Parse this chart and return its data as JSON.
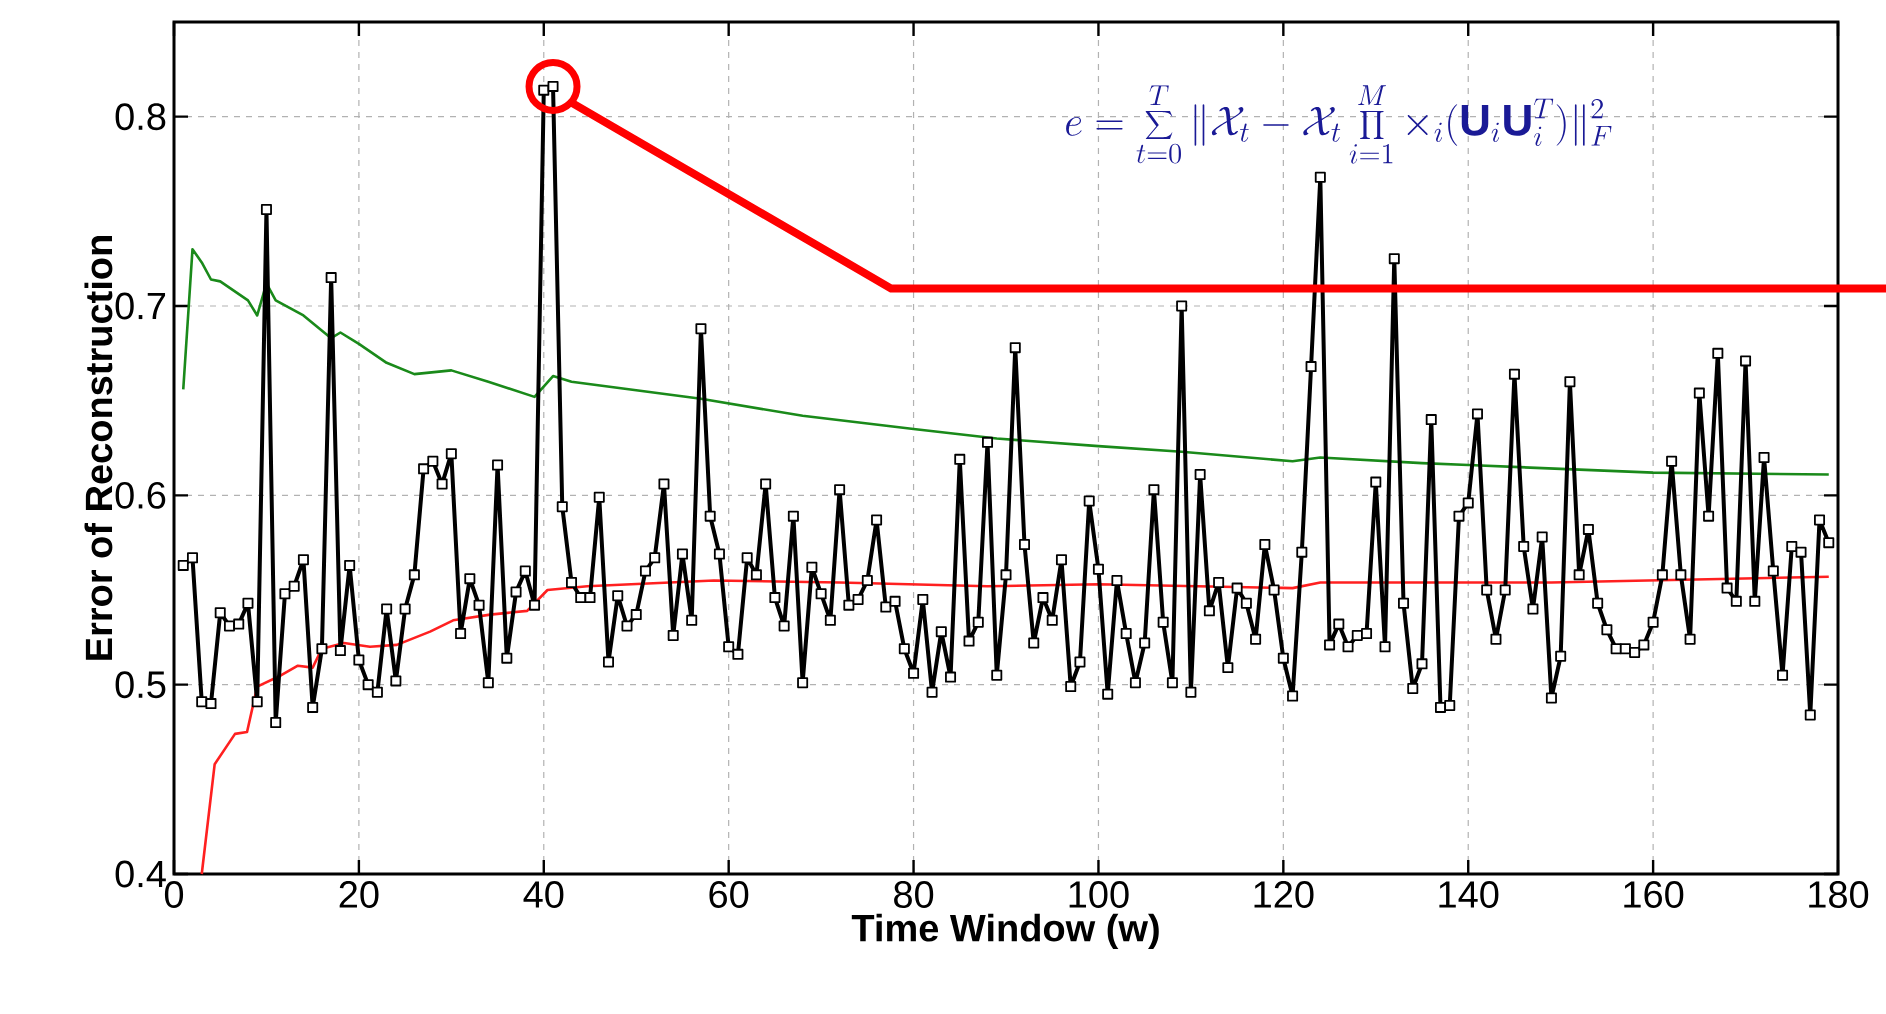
{
  "chart_data": {
    "type": "line",
    "xlabel": "Time Window (w)",
    "ylabel": "Error of Reconstruction",
    "xlim": [
      0,
      180
    ],
    "ylim": [
      0.4,
      0.85
    ],
    "xticks": [
      0,
      20,
      40,
      60,
      80,
      100,
      120,
      140,
      160,
      180
    ],
    "yticks": [
      0.4,
      0.5,
      0.6,
      0.7,
      0.8
    ],
    "grid": true,
    "series": [
      {
        "color": "#1a8a1a",
        "marker": "none",
        "x": [
          1,
          2,
          3,
          4,
          5,
          8,
          9,
          10,
          11,
          14,
          17,
          18,
          20,
          23,
          26,
          30,
          34,
          39,
          41,
          43,
          57,
          68,
          80,
          89,
          100,
          109,
          121,
          124,
          135,
          140,
          160,
          179
        ],
        "values": [
          0.656,
          0.73,
          0.723,
          0.714,
          0.713,
          0.703,
          0.695,
          0.712,
          0.703,
          0.695,
          0.683,
          0.686,
          0.68,
          0.67,
          0.664,
          0.666,
          0.66,
          0.652,
          0.663,
          0.66,
          0.651,
          0.642,
          0.635,
          0.63,
          0.626,
          0.623,
          0.618,
          0.62,
          0.617,
          0.616,
          0.612,
          0.611
        ]
      },
      {
        "color": "#ff2020",
        "marker": "none",
        "x": [
          3,
          4.4,
          6.6,
          7.9,
          9,
          11.6,
          13.4,
          15,
          16,
          18.4,
          21.2,
          24.1,
          27.7,
          30.2,
          34.2,
          38.2,
          40.4,
          44.7,
          58.4,
          72,
          88,
          100,
          121,
          124,
          136.6,
          149,
          179
        ],
        "values": [
          0.4,
          0.458,
          0.474,
          0.475,
          0.499,
          0.505,
          0.51,
          0.509,
          0.519,
          0.522,
          0.52,
          0.521,
          0.528,
          0.534,
          0.537,
          0.539,
          0.55,
          0.552,
          0.555,
          0.554,
          0.552,
          0.553,
          0.551,
          0.554,
          0.554,
          0.554,
          0.557
        ]
      },
      {
        "color": "#000000",
        "marker": "square",
        "x": [
          1,
          2,
          3,
          4,
          5,
          6,
          7,
          8,
          9,
          10,
          11,
          12,
          13,
          14,
          15,
          16,
          17,
          18,
          19,
          20,
          21,
          22,
          23,
          24,
          25,
          26,
          27,
          28,
          29,
          30,
          31,
          32,
          33,
          34,
          35,
          36,
          37,
          38,
          39,
          40,
          41,
          42,
          43,
          44,
          45,
          46,
          47,
          48,
          49,
          50,
          51,
          52,
          53,
          54,
          55,
          56,
          57,
          58,
          59,
          60,
          61,
          62,
          63,
          64,
          65,
          66,
          67,
          68,
          69,
          70,
          71,
          72,
          73,
          74,
          75,
          76,
          77,
          78,
          79,
          80,
          81,
          82,
          83,
          84,
          85,
          86,
          87,
          88,
          89,
          90,
          91,
          92,
          93,
          94,
          95,
          96,
          97,
          98,
          99,
          100,
          101,
          102,
          103,
          104,
          105,
          106,
          107,
          108,
          109,
          110,
          111,
          112,
          113,
          114,
          115,
          116,
          117,
          118,
          119,
          120,
          121,
          122,
          123,
          124,
          125,
          126,
          127,
          128,
          129,
          130,
          131,
          132,
          133,
          134,
          135,
          136,
          137,
          138,
          139,
          140,
          141,
          142,
          143,
          144,
          145,
          146,
          147,
          148,
          149,
          150,
          151,
          152,
          153,
          154,
          155,
          156,
          157,
          158,
          159,
          160,
          161,
          162,
          163,
          164,
          165,
          166,
          167,
          168,
          169,
          170,
          171,
          172,
          173,
          174,
          175,
          176,
          177,
          178,
          179
        ],
        "values": [
          0.563,
          0.567,
          0.491,
          0.49,
          0.538,
          0.531,
          0.532,
          0.543,
          0.491,
          0.751,
          0.48,
          0.548,
          0.552,
          0.566,
          0.488,
          0.519,
          0.715,
          0.518,
          0.563,
          0.513,
          0.5,
          0.496,
          0.54,
          0.502,
          0.54,
          0.558,
          0.614,
          0.618,
          0.606,
          0.622,
          0.527,
          0.556,
          0.542,
          0.501,
          0.616,
          0.514,
          0.549,
          0.56,
          0.542,
          0.814,
          0.816,
          0.594,
          0.554,
          0.546,
          0.546,
          0.599,
          0.512,
          0.547,
          0.531,
          0.537,
          0.56,
          0.567,
          0.606,
          0.526,
          0.569,
          0.534,
          0.688,
          0.589,
          0.569,
          0.52,
          0.516,
          0.567,
          0.558,
          0.606,
          0.546,
          0.531,
          0.589,
          0.501,
          0.562,
          0.548,
          0.534,
          0.603,
          0.542,
          0.545,
          0.555,
          0.587,
          0.541,
          0.544,
          0.519,
          0.506,
          0.545,
          0.496,
          0.528,
          0.504,
          0.619,
          0.523,
          0.533,
          0.628,
          0.505,
          0.558,
          0.678,
          0.574,
          0.522,
          0.546,
          0.534,
          0.566,
          0.499,
          0.512,
          0.597,
          0.561,
          0.495,
          0.555,
          0.527,
          0.501,
          0.522,
          0.603,
          0.533,
          0.501,
          0.7,
          0.496,
          0.611,
          0.539,
          0.554,
          0.509,
          0.551,
          0.543,
          0.524,
          0.574,
          0.55,
          0.514,
          0.494,
          0.57,
          0.668,
          0.768,
          0.521,
          0.532,
          0.52,
          0.526,
          0.527,
          0.607,
          0.52,
          0.725,
          0.543,
          0.498,
          0.511,
          0.64,
          0.488,
          0.489,
          0.589,
          0.596,
          0.643,
          0.55,
          0.524,
          0.55,
          0.664,
          0.573,
          0.54,
          0.578,
          0.493,
          0.515,
          0.66,
          0.558,
          0.582,
          0.543,
          0.529,
          0.519,
          0.519,
          0.517,
          0.521,
          0.533,
          0.558,
          0.618,
          0.558,
          0.524,
          0.654,
          0.589,
          0.675,
          0.551,
          0.544,
          0.671,
          0.544,
          0.62,
          0.56,
          0.505,
          0.573,
          0.57,
          0.484,
          0.587,
          0.575
        ]
      }
    ],
    "annotations": [
      "e=\\sum_{t=0}^{T}\\|\\mathcal{X}_t-\\mathcal{X}_t\\prod_{i=1}^{M}\\times_i(\\mathbf{U}_i\\mathbf{U}_i^T)\\|_F^2"
    ]
  }
}
